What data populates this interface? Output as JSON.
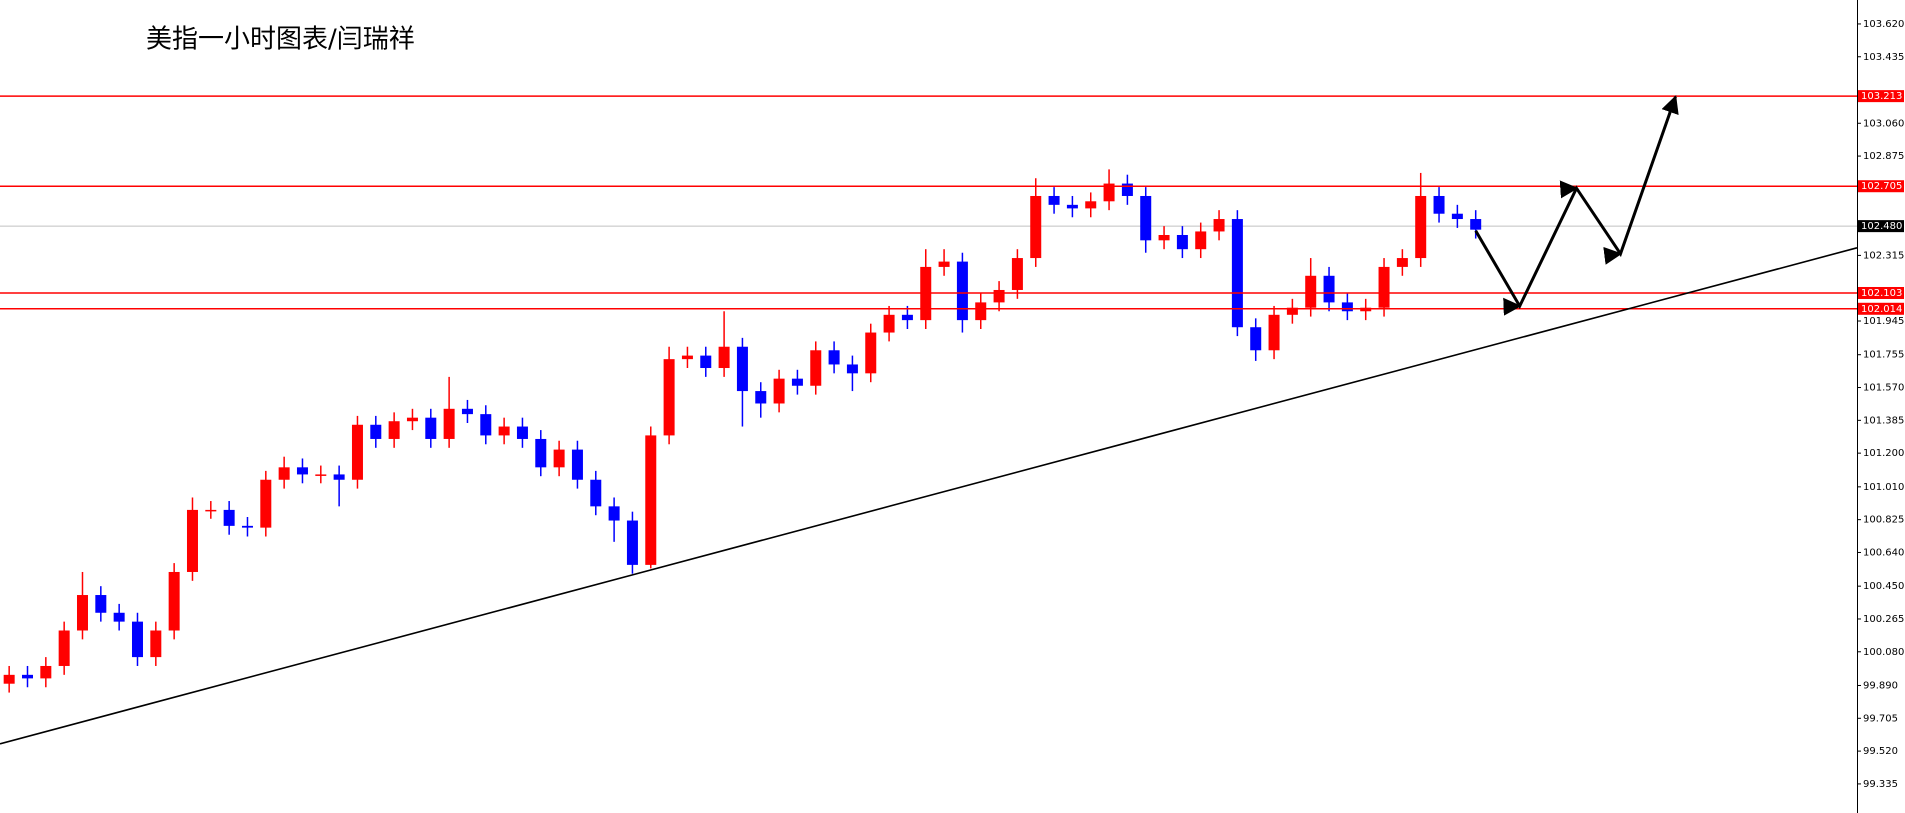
{
  "chart_data": {
    "type": "candlestick",
    "title": "美指一小时图表/闫瑞祥",
    "categories": [
      null,
      null,
      null,
      null,
      null,
      null,
      null,
      null,
      null,
      null,
      null,
      null,
      null,
      null,
      null,
      null,
      null,
      null,
      null,
      null,
      null,
      null,
      null,
      null,
      null,
      null,
      null,
      null,
      null,
      null,
      null,
      null,
      null,
      null,
      null,
      null,
      null,
      null,
      null,
      null,
      null,
      null,
      null,
      null,
      null,
      null,
      null,
      null,
      null,
      null,
      null,
      null,
      null,
      null,
      null,
      null,
      null,
      null,
      null,
      null,
      null,
      null,
      null,
      null,
      null,
      null,
      null,
      null,
      null,
      null,
      null,
      null,
      null,
      null,
      null,
      null,
      null,
      null,
      null,
      null,
      null
    ],
    "open": [
      99.9,
      99.95,
      99.93,
      100.0,
      100.2,
      100.4,
      100.3,
      100.25,
      100.05,
      100.2,
      100.53,
      100.88,
      100.88,
      100.79,
      100.78,
      101.05,
      101.12,
      101.08,
      101.08,
      101.05,
      101.36,
      101.28,
      101.38,
      101.4,
      101.28,
      101.45,
      101.42,
      101.3,
      101.35,
      101.28,
      101.12,
      101.22,
      101.05,
      100.9,
      100.82,
      100.57,
      101.3,
      101.73,
      101.75,
      101.68,
      101.8,
      101.55,
      101.48,
      101.62,
      101.58,
      101.78,
      101.7,
      101.65,
      101.88,
      101.98,
      101.95,
      102.25,
      102.28,
      101.95,
      102.05,
      102.12,
      102.3,
      102.65,
      102.6,
      102.58,
      102.62,
      102.72,
      102.65,
      102.4,
      102.43,
      102.35,
      102.45,
      102.52,
      101.91,
      101.78,
      101.98,
      102.02,
      102.2,
      102.05,
      102.0,
      102.02,
      102.25,
      102.3,
      102.65,
      102.55,
      102.52
    ],
    "high": [
      100.0,
      100.0,
      100.05,
      100.25,
      100.53,
      100.45,
      100.35,
      100.3,
      100.25,
      100.58,
      100.95,
      100.93,
      100.93,
      100.84,
      101.1,
      101.18,
      101.17,
      101.13,
      101.13,
      101.41,
      101.41,
      101.43,
      101.45,
      101.45,
      101.63,
      101.5,
      101.47,
      101.4,
      101.4,
      101.33,
      101.27,
      101.27,
      101.1,
      100.95,
      100.87,
      101.35,
      101.8,
      101.8,
      101.8,
      102.0,
      101.85,
      101.6,
      101.67,
      101.67,
      101.83,
      101.83,
      101.75,
      101.93,
      102.03,
      102.03,
      102.35,
      102.35,
      102.33,
      102.1,
      102.17,
      102.35,
      102.75,
      102.7,
      102.65,
      102.67,
      102.8,
      102.77,
      102.7,
      102.48,
      102.48,
      102.5,
      102.57,
      102.57,
      101.96,
      102.03,
      102.07,
      102.3,
      102.25,
      102.1,
      102.07,
      102.3,
      102.35,
      102.78,
      102.7,
      102.6,
      102.57
    ],
    "low": [
      99.85,
      99.88,
      99.88,
      99.95,
      100.15,
      100.25,
      100.2,
      100.0,
      100.0,
      100.15,
      100.48,
      100.83,
      100.74,
      100.73,
      100.73,
      101.0,
      101.03,
      101.03,
      100.9,
      101.0,
      101.23,
      101.23,
      101.33,
      101.23,
      101.23,
      101.37,
      101.25,
      101.25,
      101.23,
      101.07,
      101.07,
      101.0,
      100.85,
      100.7,
      100.52,
      100.55,
      101.25,
      101.68,
      101.63,
      101.63,
      101.35,
      101.4,
      101.43,
      101.53,
      101.53,
      101.65,
      101.55,
      101.6,
      101.83,
      101.9,
      101.9,
      102.2,
      101.88,
      101.9,
      102.0,
      102.07,
      102.25,
      102.55,
      102.53,
      102.53,
      102.57,
      102.6,
      102.33,
      102.35,
      102.3,
      102.3,
      102.4,
      101.86,
      101.72,
      101.73,
      101.93,
      101.97,
      102.0,
      101.95,
      101.95,
      101.97,
      102.2,
      102.25,
      102.5,
      102.47,
      102.41
    ],
    "close": [
      99.95,
      99.93,
      100.0,
      100.2,
      100.4,
      100.3,
      100.25,
      100.05,
      100.2,
      100.53,
      100.88,
      100.88,
      100.79,
      100.78,
      101.05,
      101.12,
      101.08,
      101.08,
      101.05,
      101.36,
      101.28,
      101.38,
      101.4,
      101.28,
      101.45,
      101.42,
      101.3,
      101.35,
      101.28,
      101.12,
      101.22,
      101.05,
      100.9,
      100.82,
      100.57,
      101.3,
      101.73,
      101.75,
      101.68,
      101.8,
      101.55,
      101.48,
      101.62,
      101.58,
      101.78,
      101.7,
      101.65,
      101.88,
      101.98,
      101.95,
      102.25,
      102.28,
      101.95,
      102.05,
      102.12,
      102.3,
      102.65,
      102.6,
      102.58,
      102.62,
      102.72,
      102.65,
      102.4,
      102.43,
      102.35,
      102.45,
      102.52,
      101.91,
      101.78,
      101.98,
      102.02,
      102.2,
      102.05,
      102.0,
      102.02,
      102.25,
      102.3,
      102.65,
      102.55,
      102.52,
      102.46
    ],
    "up_color": "#ff0000",
    "down_color": "#0000ff",
    "xlim": [
      -0.5,
      100.8
    ],
    "ylim": [
      99.171,
      103.755
    ],
    "yticks": [
      {
        "value": 99.335,
        "label": "99.335"
      },
      {
        "value": 99.52,
        "label": "99.520"
      },
      {
        "value": 99.705,
        "label": "99.705"
      },
      {
        "value": 99.89,
        "label": "99.890"
      },
      {
        "value": 100.08,
        "label": "100.080"
      },
      {
        "value": 100.265,
        "label": "100.265"
      },
      {
        "value": 100.45,
        "label": "100.450"
      },
      {
        "value": 100.64,
        "label": "100.640"
      },
      {
        "value": 100.825,
        "label": "100.825"
      },
      {
        "value": 101.01,
        "label": "101.010"
      },
      {
        "value": 101.2,
        "label": "101.200"
      },
      {
        "value": 101.385,
        "label": "101.385"
      },
      {
        "value": 101.57,
        "label": "101.570"
      },
      {
        "value": 101.755,
        "label": "101.755"
      },
      {
        "value": 101.945,
        "label": "101.945"
      },
      {
        "value": 102.315,
        "label": "102.315"
      },
      {
        "value": 102.875,
        "label": "102.875"
      },
      {
        "value": 103.06,
        "label": "103.060"
      },
      {
        "value": 103.435,
        "label": "103.435"
      },
      {
        "value": 103.62,
        "label": "103.620"
      }
    ],
    "levels": [
      103.213,
      102.705,
      102.103,
      102.014
    ],
    "level_color": "#ff0000",
    "current_price": {
      "value": 102.48,
      "label": "102.480"
    },
    "trendline": {
      "x": [
        -0.5,
        100.8
      ],
      "y": [
        99.561,
        102.358
      ]
    },
    "projection": {
      "x": [
        80,
        82.4,
        85.5,
        87.9,
        90.9
      ],
      "y": [
        102.454,
        102.029,
        102.694,
        102.324,
        103.209
      ]
    }
  }
}
